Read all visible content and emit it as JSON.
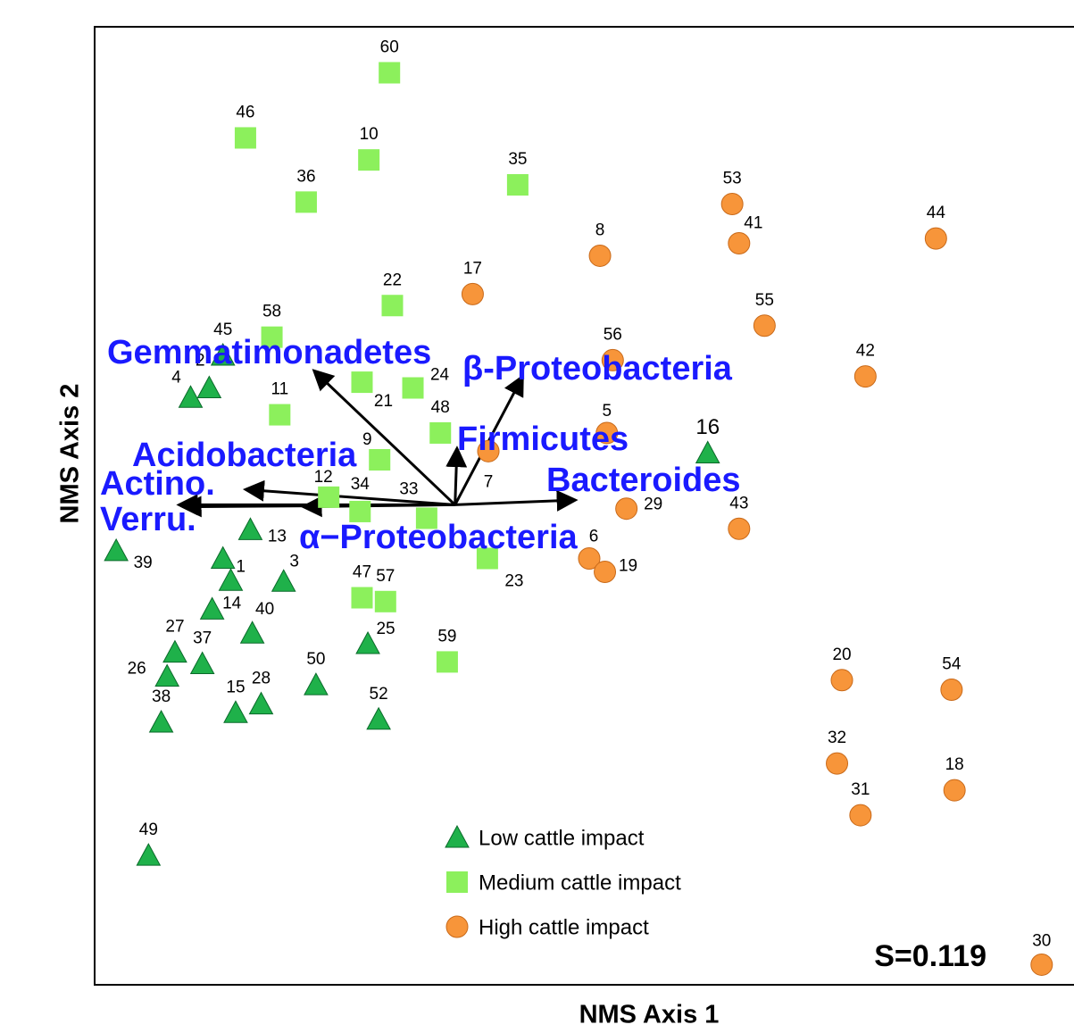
{
  "chart_data": {
    "type": "scatter",
    "x_label": "NMS Axis 1",
    "y_label": "NMS Axis 2",
    "xlim": [
      0,
      100
    ],
    "ylim": [
      0,
      100
    ],
    "annotation": "S=0.119",
    "series": [
      {
        "name": "Low cattle impact",
        "color": "#1fb14a",
        "marker": "triangle",
        "labels": [
          "2",
          "4",
          "45",
          "16",
          "13",
          "39",
          "1",
          null,
          "3",
          "14",
          "40",
          "27",
          "37",
          "26",
          "25",
          "50",
          "15",
          "28",
          "38",
          "52",
          "49"
        ],
        "x": [
          11.7,
          9.8,
          13.1,
          62.6,
          15.9,
          2.2,
          13.1,
          13.9,
          19.3,
          12.0,
          16.1,
          8.2,
          11.0,
          7.4,
          27.9,
          22.6,
          14.4,
          17.0,
          6.8,
          29.0,
          5.5
        ],
        "values": [
          62.3,
          61.3,
          65.7,
          55.5,
          47.5,
          45.3,
          44.5,
          42.2,
          42.1,
          39.2,
          36.7,
          34.7,
          33.5,
          32.2,
          35.6,
          31.3,
          28.4,
          29.3,
          27.4,
          27.7,
          13.5
        ]
      },
      {
        "name": "Medium cattle impact",
        "color": "#8cf05c",
        "marker": "square",
        "labels": [
          "60",
          "46",
          "10",
          "36",
          "35",
          "22",
          "58",
          "21",
          "24",
          "11",
          "48",
          "9",
          "12",
          "34",
          "33",
          "23",
          "47",
          "57",
          "59"
        ],
        "x": [
          30.1,
          15.4,
          28.0,
          21.6,
          43.2,
          30.4,
          18.1,
          27.3,
          32.5,
          18.9,
          35.3,
          29.1,
          23.9,
          27.1,
          33.9,
          40.1,
          27.3,
          29.7,
          36.0
        ],
        "values": [
          95.2,
          88.4,
          86.1,
          81.7,
          83.5,
          70.9,
          67.6,
          62.9,
          62.3,
          59.5,
          57.6,
          54.8,
          50.9,
          49.4,
          48.7,
          44.5,
          40.4,
          40.0,
          33.7
        ]
      },
      {
        "name": "High cattle impact",
        "color": "#f7953a",
        "marker": "circle",
        "labels": [
          "53",
          "41",
          "44",
          "8",
          "17",
          "55",
          "56",
          "42",
          "5",
          "7",
          "29",
          "43",
          "6",
          "19",
          "20",
          "54",
          "32",
          "18",
          "31",
          "30"
        ],
        "x": [
          65.1,
          65.8,
          85.9,
          51.6,
          38.6,
          68.4,
          52.9,
          78.7,
          52.3,
          40.2,
          54.3,
          65.8,
          50.5,
          52.1,
          76.3,
          87.5,
          75.8,
          87.8,
          78.2,
          96.7
        ],
        "values": [
          81.5,
          77.4,
          77.9,
          76.1,
          72.1,
          68.8,
          65.2,
          63.5,
          57.6,
          55.7,
          49.7,
          47.6,
          44.5,
          43.1,
          31.8,
          30.8,
          23.1,
          20.3,
          17.7,
          2.1
        ]
      }
    ],
    "vector_origin": {
      "x": 36.8,
      "y": 50.1
    },
    "vectors": [
      {
        "name": "Gemmatimonadetes",
        "x": 22.4,
        "y": 64.1
      },
      {
        "name": "β-Proteobacteria",
        "x": 43.7,
        "y": 63.5
      },
      {
        "name": "Firmicutes",
        "x": 37.0,
        "y": 56.0
      },
      {
        "name": "Acidobacteria",
        "x": 15.4,
        "y": 51.7
      },
      {
        "name": "Actino.",
        "x": 8.6,
        "y": 50.1
      },
      {
        "name": "Verru.",
        "x": 9.0,
        "y": 49.9
      },
      {
        "name": "α−Proteobacteria",
        "x": 21.3,
        "y": 49.9
      },
      {
        "name": "Bacteroides",
        "x": 49.1,
        "y": 50.6
      }
    ]
  }
}
